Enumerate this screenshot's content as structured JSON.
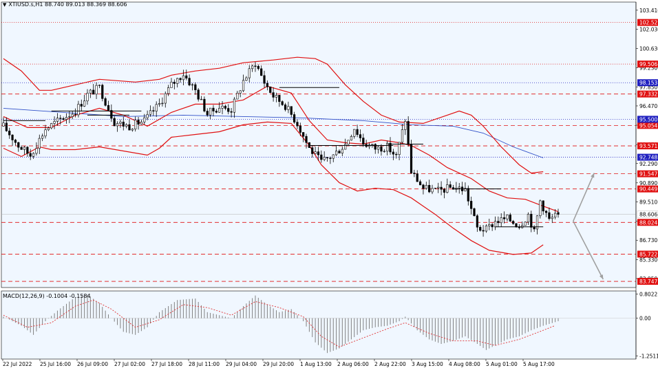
{
  "header": {
    "symbol_line": "XTIUSD.s,H1  88.740 89.013 88.369 88.606",
    "indicator_line": "MACD(12,26,9) -0.1004 -0.1584"
  },
  "colors": {
    "background": "#f0f7ff",
    "candle": "#000000",
    "bollinger": "#e01010",
    "moving_average": "#3050c8",
    "level_red": "#e01010",
    "level_blue": "#2020c0",
    "macd_hist": "#808080",
    "macd_signal": "#e03030",
    "arrow": "#a0a0a0"
  },
  "chart_data": [
    {
      "type": "candlestick",
      "symbol": "XTIUSD.s",
      "timeframe": "H1",
      "ohlc_current": {
        "open": 88.74,
        "high": 89.013,
        "low": 88.369,
        "close": 88.606
      },
      "ylim": [
        83.3,
        104.0
      ],
      "y_ticks": [
        103.41,
        102.03,
        100.63,
        99.23,
        97.85,
        96.47,
        95.07,
        93.67,
        92.29,
        90.89,
        89.51,
        88.11,
        86.73,
        85.33,
        83.95
      ],
      "x_tick_labels": [
        "22 Jul 2022",
        "25 Jul 16:00",
        "26 Jul 09:00",
        "27 Jul 02:00",
        "27 Jul 18:00",
        "28 Jul 11:00",
        "29 Jul 04:00",
        "29 Jul 20:00",
        "1 Aug 13:00",
        "2 Aug 06:00",
        "2 Aug 22:00",
        "3 Aug 15:00",
        "4 Aug 08:00",
        "5 Aug 01:00",
        "5 Aug 17:00"
      ],
      "bars": 186,
      "close_path": [
        [
          0,
          95.0
        ],
        [
          5,
          93.6
        ],
        [
          9,
          92.9
        ],
        [
          14,
          94.8
        ],
        [
          19,
          95.5
        ],
        [
          24,
          96.1
        ],
        [
          28,
          97.3
        ],
        [
          32,
          97.8
        ],
        [
          37,
          95.3
        ],
        [
          42,
          95.0
        ],
        [
          47,
          95.4
        ],
        [
          52,
          96.6
        ],
        [
          56,
          98.0
        ],
        [
          60,
          98.8
        ],
        [
          64,
          97.6
        ],
        [
          68,
          95.9
        ],
        [
          72,
          96.4
        ],
        [
          76,
          96.2
        ],
        [
          80,
          98.3
        ],
        [
          84,
          99.6
        ],
        [
          87,
          98.2
        ],
        [
          90,
          97.2
        ],
        [
          94,
          96.5
        ],
        [
          98,
          95.2
        ],
        [
          102,
          93.4
        ],
        [
          106,
          92.4
        ],
        [
          110,
          92.9
        ],
        [
          114,
          93.7
        ],
        [
          117,
          94.9
        ],
        [
          120,
          93.8
        ],
        [
          124,
          93.4
        ],
        [
          128,
          93.5
        ],
        [
          131,
          92.8
        ],
        [
          134,
          95.5
        ],
        [
          136,
          91.7
        ],
        [
          140,
          90.5
        ],
        [
          145,
          90.3
        ],
        [
          150,
          90.6
        ],
        [
          154,
          90.4
        ],
        [
          158,
          87.6
        ],
        [
          161,
          87.5
        ],
        [
          164,
          88.1
        ],
        [
          168,
          88.3
        ],
        [
          172,
          87.8
        ],
        [
          175,
          88.6
        ],
        [
          177,
          87.3
        ],
        [
          179,
          89.6
        ],
        [
          182,
          88.2
        ],
        [
          185,
          88.606
        ]
      ],
      "levels_red": [
        102.521,
        99.506,
        97.332,
        95.054,
        93.571,
        91.547,
        90.449,
        88.024,
        85.722,
        83.747
      ],
      "levels_blue": [
        98.153,
        95.5,
        92.748
      ],
      "current_price": 88.606,
      "bollinger_upper": [
        [
          0,
          99.9
        ],
        [
          6,
          99.0
        ],
        [
          12,
          97.6
        ],
        [
          16,
          97.6
        ],
        [
          24,
          98.0
        ],
        [
          32,
          98.4
        ],
        [
          44,
          98.2
        ],
        [
          52,
          98.4
        ],
        [
          56,
          98.7
        ],
        [
          64,
          99.0
        ],
        [
          72,
          99.2
        ],
        [
          80,
          99.6
        ],
        [
          90,
          99.8
        ],
        [
          98,
          100.0
        ],
        [
          104,
          99.9
        ],
        [
          108,
          99.5
        ],
        [
          114,
          98.0
        ],
        [
          120,
          96.8
        ],
        [
          126,
          95.8
        ],
        [
          132,
          95.3
        ],
        [
          140,
          95.2
        ],
        [
          148,
          95.8
        ],
        [
          152,
          96.1
        ],
        [
          156,
          95.8
        ],
        [
          160,
          95.0
        ],
        [
          166,
          93.5
        ],
        [
          172,
          92.2
        ],
        [
          176,
          91.6
        ],
        [
          180,
          91.7
        ]
      ],
      "bollinger_middle": [
        [
          0,
          95.7
        ],
        [
          8,
          94.9
        ],
        [
          16,
          94.9
        ],
        [
          24,
          95.8
        ],
        [
          32,
          96.3
        ],
        [
          40,
          95.8
        ],
        [
          48,
          95.0
        ],
        [
          56,
          96.0
        ],
        [
          64,
          96.6
        ],
        [
          72,
          96.6
        ],
        [
          80,
          96.9
        ],
        [
          88,
          97.9
        ],
        [
          96,
          97.4
        ],
        [
          102,
          95.4
        ],
        [
          108,
          94.0
        ],
        [
          114,
          93.8
        ],
        [
          120,
          93.7
        ],
        [
          126,
          94.0
        ],
        [
          132,
          93.8
        ],
        [
          136,
          93.6
        ],
        [
          142,
          92.9
        ],
        [
          148,
          92.0
        ],
        [
          156,
          91.2
        ],
        [
          162,
          90.3
        ],
        [
          168,
          89.8
        ],
        [
          174,
          89.7
        ],
        [
          180,
          89.2
        ],
        [
          185,
          88.8
        ]
      ],
      "bollinger_lower": [
        [
          0,
          93.4
        ],
        [
          6,
          92.8
        ],
        [
          12,
          93.5
        ],
        [
          16,
          93.3
        ],
        [
          24,
          93.3
        ],
        [
          32,
          93.5
        ],
        [
          40,
          93.2
        ],
        [
          48,
          92.9
        ],
        [
          52,
          93.4
        ],
        [
          56,
          94.2
        ],
        [
          64,
          94.4
        ],
        [
          72,
          94.6
        ],
        [
          80,
          95.1
        ],
        [
          88,
          95.3
        ],
        [
          96,
          95.2
        ],
        [
          102,
          93.6
        ],
        [
          106,
          92.2
        ],
        [
          112,
          90.9
        ],
        [
          118,
          90.3
        ],
        [
          124,
          90.5
        ],
        [
          130,
          90.4
        ],
        [
          136,
          89.8
        ],
        [
          140,
          89.2
        ],
        [
          144,
          88.6
        ],
        [
          150,
          87.6
        ],
        [
          156,
          86.7
        ],
        [
          162,
          86.0
        ],
        [
          170,
          85.7
        ],
        [
          176,
          85.8
        ],
        [
          180,
          86.4
        ]
      ],
      "moving_average": [
        [
          0,
          96.3
        ],
        [
          20,
          96.0
        ],
        [
          40,
          95.7
        ],
        [
          60,
          95.8
        ],
        [
          80,
          95.7
        ],
        [
          100,
          95.6
        ],
        [
          120,
          95.4
        ],
        [
          136,
          95.1
        ],
        [
          150,
          95.0
        ],
        [
          160,
          94.5
        ],
        [
          170,
          93.5
        ],
        [
          180,
          92.7
        ]
      ],
      "projection_arrows": {
        "origin": [
          190,
          88.11
        ],
        "up_target": [
          197,
          91.6
        ],
        "down_target": [
          200,
          83.9
        ]
      }
    },
    {
      "type": "bar",
      "indicator": "MACD(12,26,9)",
      "values_label": "-0.1004 -0.1584",
      "y_ticks": [
        0.8022,
        0.0,
        -1.2511
      ],
      "ylim": [
        -1.35,
        0.9
      ],
      "histogram": [
        [
          0,
          0.05
        ],
        [
          6,
          -0.25
        ],
        [
          10,
          -0.55
        ],
        [
          14,
          -0.1
        ],
        [
          18,
          0.25
        ],
        [
          24,
          0.7
        ],
        [
          28,
          0.78
        ],
        [
          32,
          0.5
        ],
        [
          36,
          0.0
        ],
        [
          40,
          -0.45
        ],
        [
          44,
          -0.55
        ],
        [
          48,
          -0.3
        ],
        [
          52,
          0.2
        ],
        [
          58,
          0.6
        ],
        [
          64,
          0.65
        ],
        [
          68,
          0.2
        ],
        [
          72,
          0.1
        ],
        [
          76,
          0.0
        ],
        [
          80,
          0.4
        ],
        [
          84,
          0.75
        ],
        [
          88,
          0.45
        ],
        [
          92,
          0.2
        ],
        [
          96,
          0.3
        ],
        [
          100,
          -0.1
        ],
        [
          104,
          -0.8
        ],
        [
          108,
          -1.15
        ],
        [
          112,
          -1.0
        ],
        [
          116,
          -0.7
        ],
        [
          120,
          -0.4
        ],
        [
          124,
          -0.3
        ],
        [
          128,
          -0.25
        ],
        [
          132,
          -0.1
        ],
        [
          134,
          0.05
        ],
        [
          138,
          -0.4
        ],
        [
          142,
          -0.7
        ],
        [
          146,
          -0.85
        ],
        [
          150,
          -0.75
        ],
        [
          154,
          -0.6
        ],
        [
          158,
          -0.85
        ],
        [
          161,
          -1.05
        ],
        [
          164,
          -0.9
        ],
        [
          168,
          -0.7
        ],
        [
          172,
          -0.6
        ],
        [
          176,
          -0.4
        ],
        [
          180,
          -0.25
        ],
        [
          185,
          -0.1
        ]
      ],
      "signal": [
        [
          0,
          0.1
        ],
        [
          8,
          -0.3
        ],
        [
          16,
          -0.15
        ],
        [
          24,
          0.4
        ],
        [
          30,
          0.6
        ],
        [
          36,
          0.3
        ],
        [
          44,
          -0.3
        ],
        [
          52,
          -0.05
        ],
        [
          60,
          0.45
        ],
        [
          68,
          0.35
        ],
        [
          76,
          0.1
        ],
        [
          84,
          0.55
        ],
        [
          92,
          0.35
        ],
        [
          100,
          0.05
        ],
        [
          106,
          -0.6
        ],
        [
          112,
          -0.95
        ],
        [
          120,
          -0.65
        ],
        [
          128,
          -0.35
        ],
        [
          134,
          -0.15
        ],
        [
          142,
          -0.5
        ],
        [
          150,
          -0.75
        ],
        [
          158,
          -0.75
        ],
        [
          164,
          -0.9
        ],
        [
          172,
          -0.7
        ],
        [
          180,
          -0.4
        ],
        [
          185,
          -0.2
        ]
      ]
    }
  ]
}
